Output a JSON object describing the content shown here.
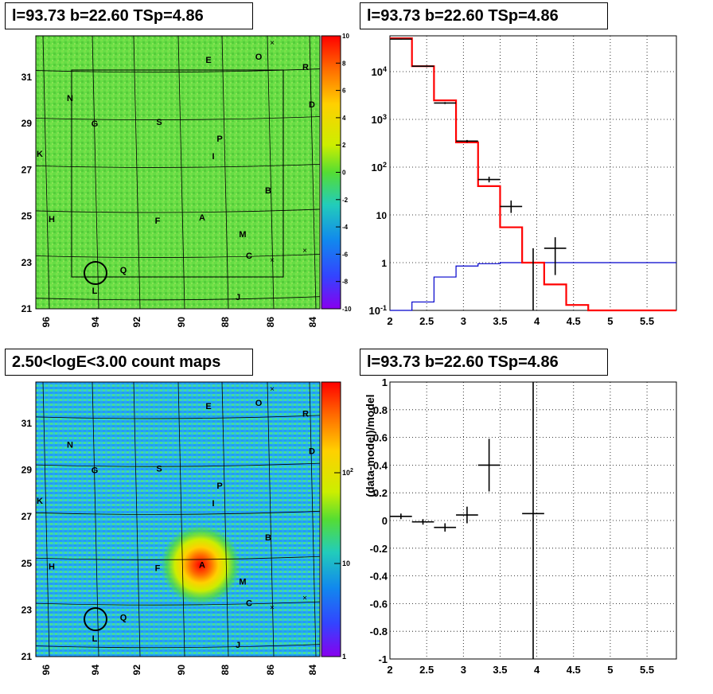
{
  "panels": {
    "tl_title": "l=93.73 b=22.60 TSp=4.86",
    "tr_title": "l=93.73 b=22.60 TSp=4.86",
    "bl_title": "2.50<logE<3.00 count maps",
    "br_title": "l=93.73 b=22.60 TSp=4.86"
  },
  "colors": {
    "model_red": "#ff0000",
    "bkg_blue": "#0000cc",
    "data_black": "#000000",
    "map_bg": "#66dd44",
    "count_bg": "#22bbee"
  },
  "chart_data": [
    {
      "type": "heatmap",
      "title": "l=93.73 b=22.60 TSp=4.86",
      "x_ticks": [
        "96",
        "94",
        "92",
        "90",
        "88",
        "86",
        "84"
      ],
      "y_ticks": [
        "31",
        "29",
        "27",
        "25",
        "23",
        "21"
      ],
      "colorbar": {
        "ticks": [
          "10",
          "8",
          "6",
          "4",
          "2",
          "0",
          "-2",
          "-4",
          "-6",
          "-8",
          "-10"
        ],
        "range": [
          -10,
          10
        ]
      },
      "labels": [
        "E",
        "O",
        "R",
        "N",
        "D",
        "G",
        "S",
        "P",
        "I",
        "K",
        "B",
        "H",
        "F",
        "A",
        "M",
        "C",
        "Q",
        "L",
        "J"
      ],
      "circle": {
        "l": 93.73,
        "b": 22.6
      }
    },
    {
      "type": "line",
      "title": "l=93.73 b=22.60 TSp=4.86",
      "xlim": [
        2,
        5.9
      ],
      "ylim": [
        0.1,
        100000
      ],
      "y_log": true,
      "x_ticks": [
        "2",
        "2.5",
        "3",
        "3.5",
        "4",
        "4.5",
        "5",
        "5.5"
      ],
      "y_ticks": [
        "10^-1",
        "1",
        "10",
        "10^2",
        "10^3",
        "10^4"
      ],
      "grid": true,
      "series": [
        {
          "role": "model",
          "color": "red",
          "edges": [
            2.0,
            2.3,
            2.6,
            2.9,
            3.2,
            3.5,
            3.8,
            4.1,
            4.4,
            4.7,
            5.0,
            5.3,
            5.6,
            5.9
          ],
          "values": [
            50000,
            13000,
            2500,
            330,
            40,
            5.5,
            1.0,
            0.35,
            0.13,
            0.1,
            0.1,
            0.1,
            0.1
          ]
        },
        {
          "role": "background",
          "color": "blue",
          "edges": [
            2.0,
            2.3,
            2.6,
            2.9,
            3.2,
            3.5,
            3.8,
            4.1,
            4.4,
            4.7,
            5.0,
            5.3,
            5.6,
            5.9
          ],
          "values": [
            0.1,
            0.15,
            0.5,
            0.85,
            0.95,
            1.0,
            1.0,
            1.0,
            1.0,
            1.0,
            1.0,
            1.0,
            1.0
          ]
        },
        {
          "role": "data",
          "color": "black",
          "points": [
            {
              "x": 2.15,
              "y": 48000,
              "xerr": 0.15,
              "ylo": 47000,
              "yhi": 49000
            },
            {
              "x": 2.45,
              "y": 13000,
              "xerr": 0.15,
              "ylo": 12700,
              "yhi": 13300
            },
            {
              "x": 2.75,
              "y": 2200,
              "xerr": 0.15,
              "ylo": 2100,
              "yhi": 2300
            },
            {
              "x": 3.05,
              "y": 350,
              "xerr": 0.15,
              "ylo": 330,
              "yhi": 370
            },
            {
              "x": 3.35,
              "y": 55,
              "xerr": 0.15,
              "ylo": 48,
              "yhi": 63
            },
            {
              "x": 3.65,
              "y": 15,
              "xerr": 0.15,
              "ylo": 11,
              "yhi": 20
            },
            {
              "x": 3.95,
              "y": 1.0,
              "xerr": 0.0,
              "ylo": 0.1,
              "yhi": 2.0
            },
            {
              "x": 4.25,
              "y": 2.0,
              "xerr": 0.15,
              "ylo": 0.55,
              "yhi": 3.4
            }
          ]
        }
      ]
    },
    {
      "type": "heatmap",
      "title": "2.50<logE<3.00 count maps",
      "x_ticks": [
        "96",
        "94",
        "92",
        "90",
        "88",
        "86",
        "84"
      ],
      "y_ticks": [
        "31",
        "29",
        "27",
        "25",
        "23",
        "21"
      ],
      "colorbar": {
        "ticks": [
          "10^2",
          "10",
          "1"
        ],
        "log": true
      },
      "labels": [
        "E",
        "O",
        "R",
        "N",
        "D",
        "G",
        "S",
        "P",
        "I",
        "K",
        "B",
        "H",
        "F",
        "A",
        "M",
        "C",
        "Q",
        "L",
        "J"
      ],
      "circle": {
        "l": 93.73,
        "b": 22.6
      },
      "hotspot_label": "A"
    },
    {
      "type": "scatter",
      "title": "l=93.73 b=22.60 TSp=4.86",
      "ylabel": "(data-model)/model",
      "xlim": [
        2,
        5.9
      ],
      "ylim": [
        -1,
        1
      ],
      "x_ticks": [
        "2",
        "2.5",
        "3",
        "3.5",
        "4",
        "4.5",
        "5",
        "5.5"
      ],
      "y_ticks": [
        "1",
        "0.8",
        "0.6",
        "0.4",
        "0.2",
        "0",
        "-0.2",
        "-0.4",
        "-0.6",
        "-0.8",
        "-1"
      ],
      "grid": true,
      "points": [
        {
          "x": 2.15,
          "y": 0.03,
          "xerr": 0.15,
          "yerr": 0.02
        },
        {
          "x": 2.45,
          "y": -0.01,
          "xerr": 0.15,
          "yerr": 0.02
        },
        {
          "x": 2.75,
          "y": -0.05,
          "xerr": 0.15,
          "yerr": 0.03
        },
        {
          "x": 3.05,
          "y": 0.04,
          "xerr": 0.15,
          "yerr": 0.06
        },
        {
          "x": 3.35,
          "y": 0.4,
          "xerr": 0.15,
          "yerr": 0.19
        },
        {
          "x": 3.95,
          "y": 0.05,
          "xerr": 0.15,
          "yerr": 1.2
        }
      ]
    }
  ]
}
